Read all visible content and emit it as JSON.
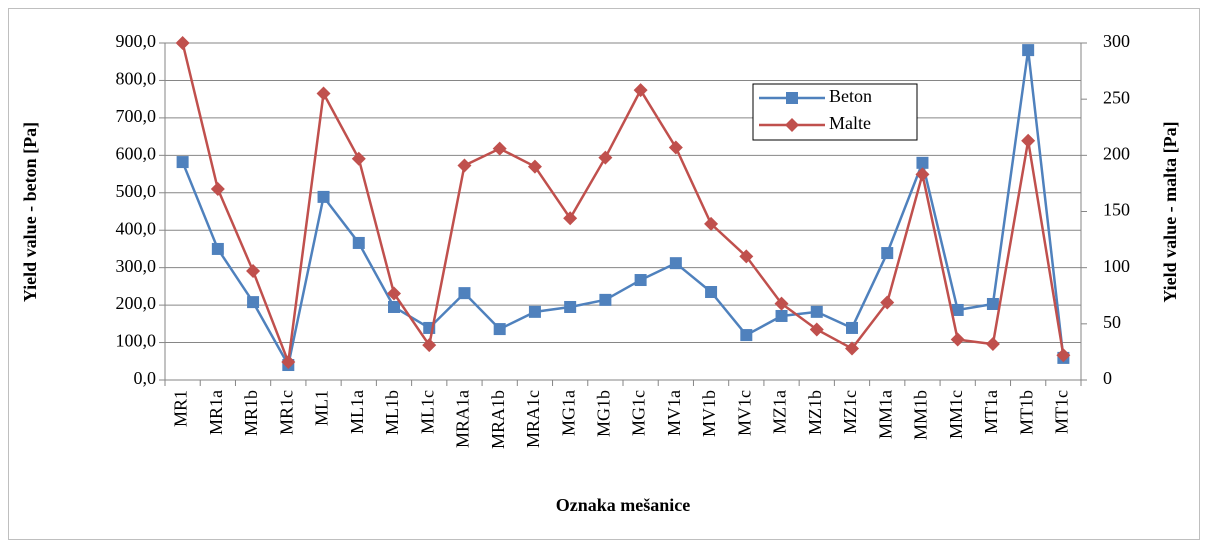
{
  "chart_data": {
    "type": "line",
    "x_label": "Oznaka mešanice",
    "y_label": "Yield value - beton [Pa]",
    "y2_label": "Yield value - malta [Pa]",
    "categories": [
      "MR1",
      "MR1a",
      "MR1b",
      "MR1c",
      "ML1",
      "ML1a",
      "ML1b",
      "ML1c",
      "MRA1a",
      "MRA1b",
      "MRA1c",
      "MG1a",
      "MG1b",
      "MG1c",
      "MV1a",
      "MV1b",
      "MV1c",
      "MZ1a",
      "MZ1b",
      "MZ1c",
      "MM1a",
      "MM1b",
      "MM1c",
      "MT1a",
      "MT1b",
      "MT1c"
    ],
    "series": [
      {
        "name": "Beton",
        "color": "#4f81bd",
        "marker": "square",
        "values": [
          582,
          350,
          208,
          40,
          489,
          366,
          195,
          139,
          232,
          136,
          182,
          195,
          214,
          267,
          312,
          235,
          120,
          171,
          182,
          139,
          339,
          580,
          187,
          203,
          881,
          59
        ]
      },
      {
        "name": "Malte",
        "color": "#c0504d",
        "marker": "diamond",
        "axis": "y2",
        "values": [
          300,
          170,
          97,
          16,
          255,
          197,
          77,
          31,
          191,
          206,
          190,
          144,
          198,
          258,
          207,
          139,
          110,
          68,
          45,
          28,
          69,
          183,
          36,
          32,
          213,
          22
        ]
      }
    ],
    "ylim": [
      0,
      900
    ],
    "yticks": [
      {
        "value": 0,
        "label": "0,0"
      },
      {
        "value": 100,
        "label": "100,0"
      },
      {
        "value": 200,
        "label": "200,0"
      },
      {
        "value": 300,
        "label": "300,0"
      },
      {
        "value": 400,
        "label": "400,0"
      },
      {
        "value": 500,
        "label": "500,0"
      },
      {
        "value": 600,
        "label": "600,0"
      },
      {
        "value": 700,
        "label": "700,0"
      },
      {
        "value": 800,
        "label": "800,0"
      },
      {
        "value": 900,
        "label": "900,0"
      }
    ],
    "y2lim": [
      0,
      300
    ],
    "y2ticks": [
      0,
      50,
      100,
      150,
      200,
      250,
      300
    ],
    "grid": true,
    "legend": "top-right"
  }
}
